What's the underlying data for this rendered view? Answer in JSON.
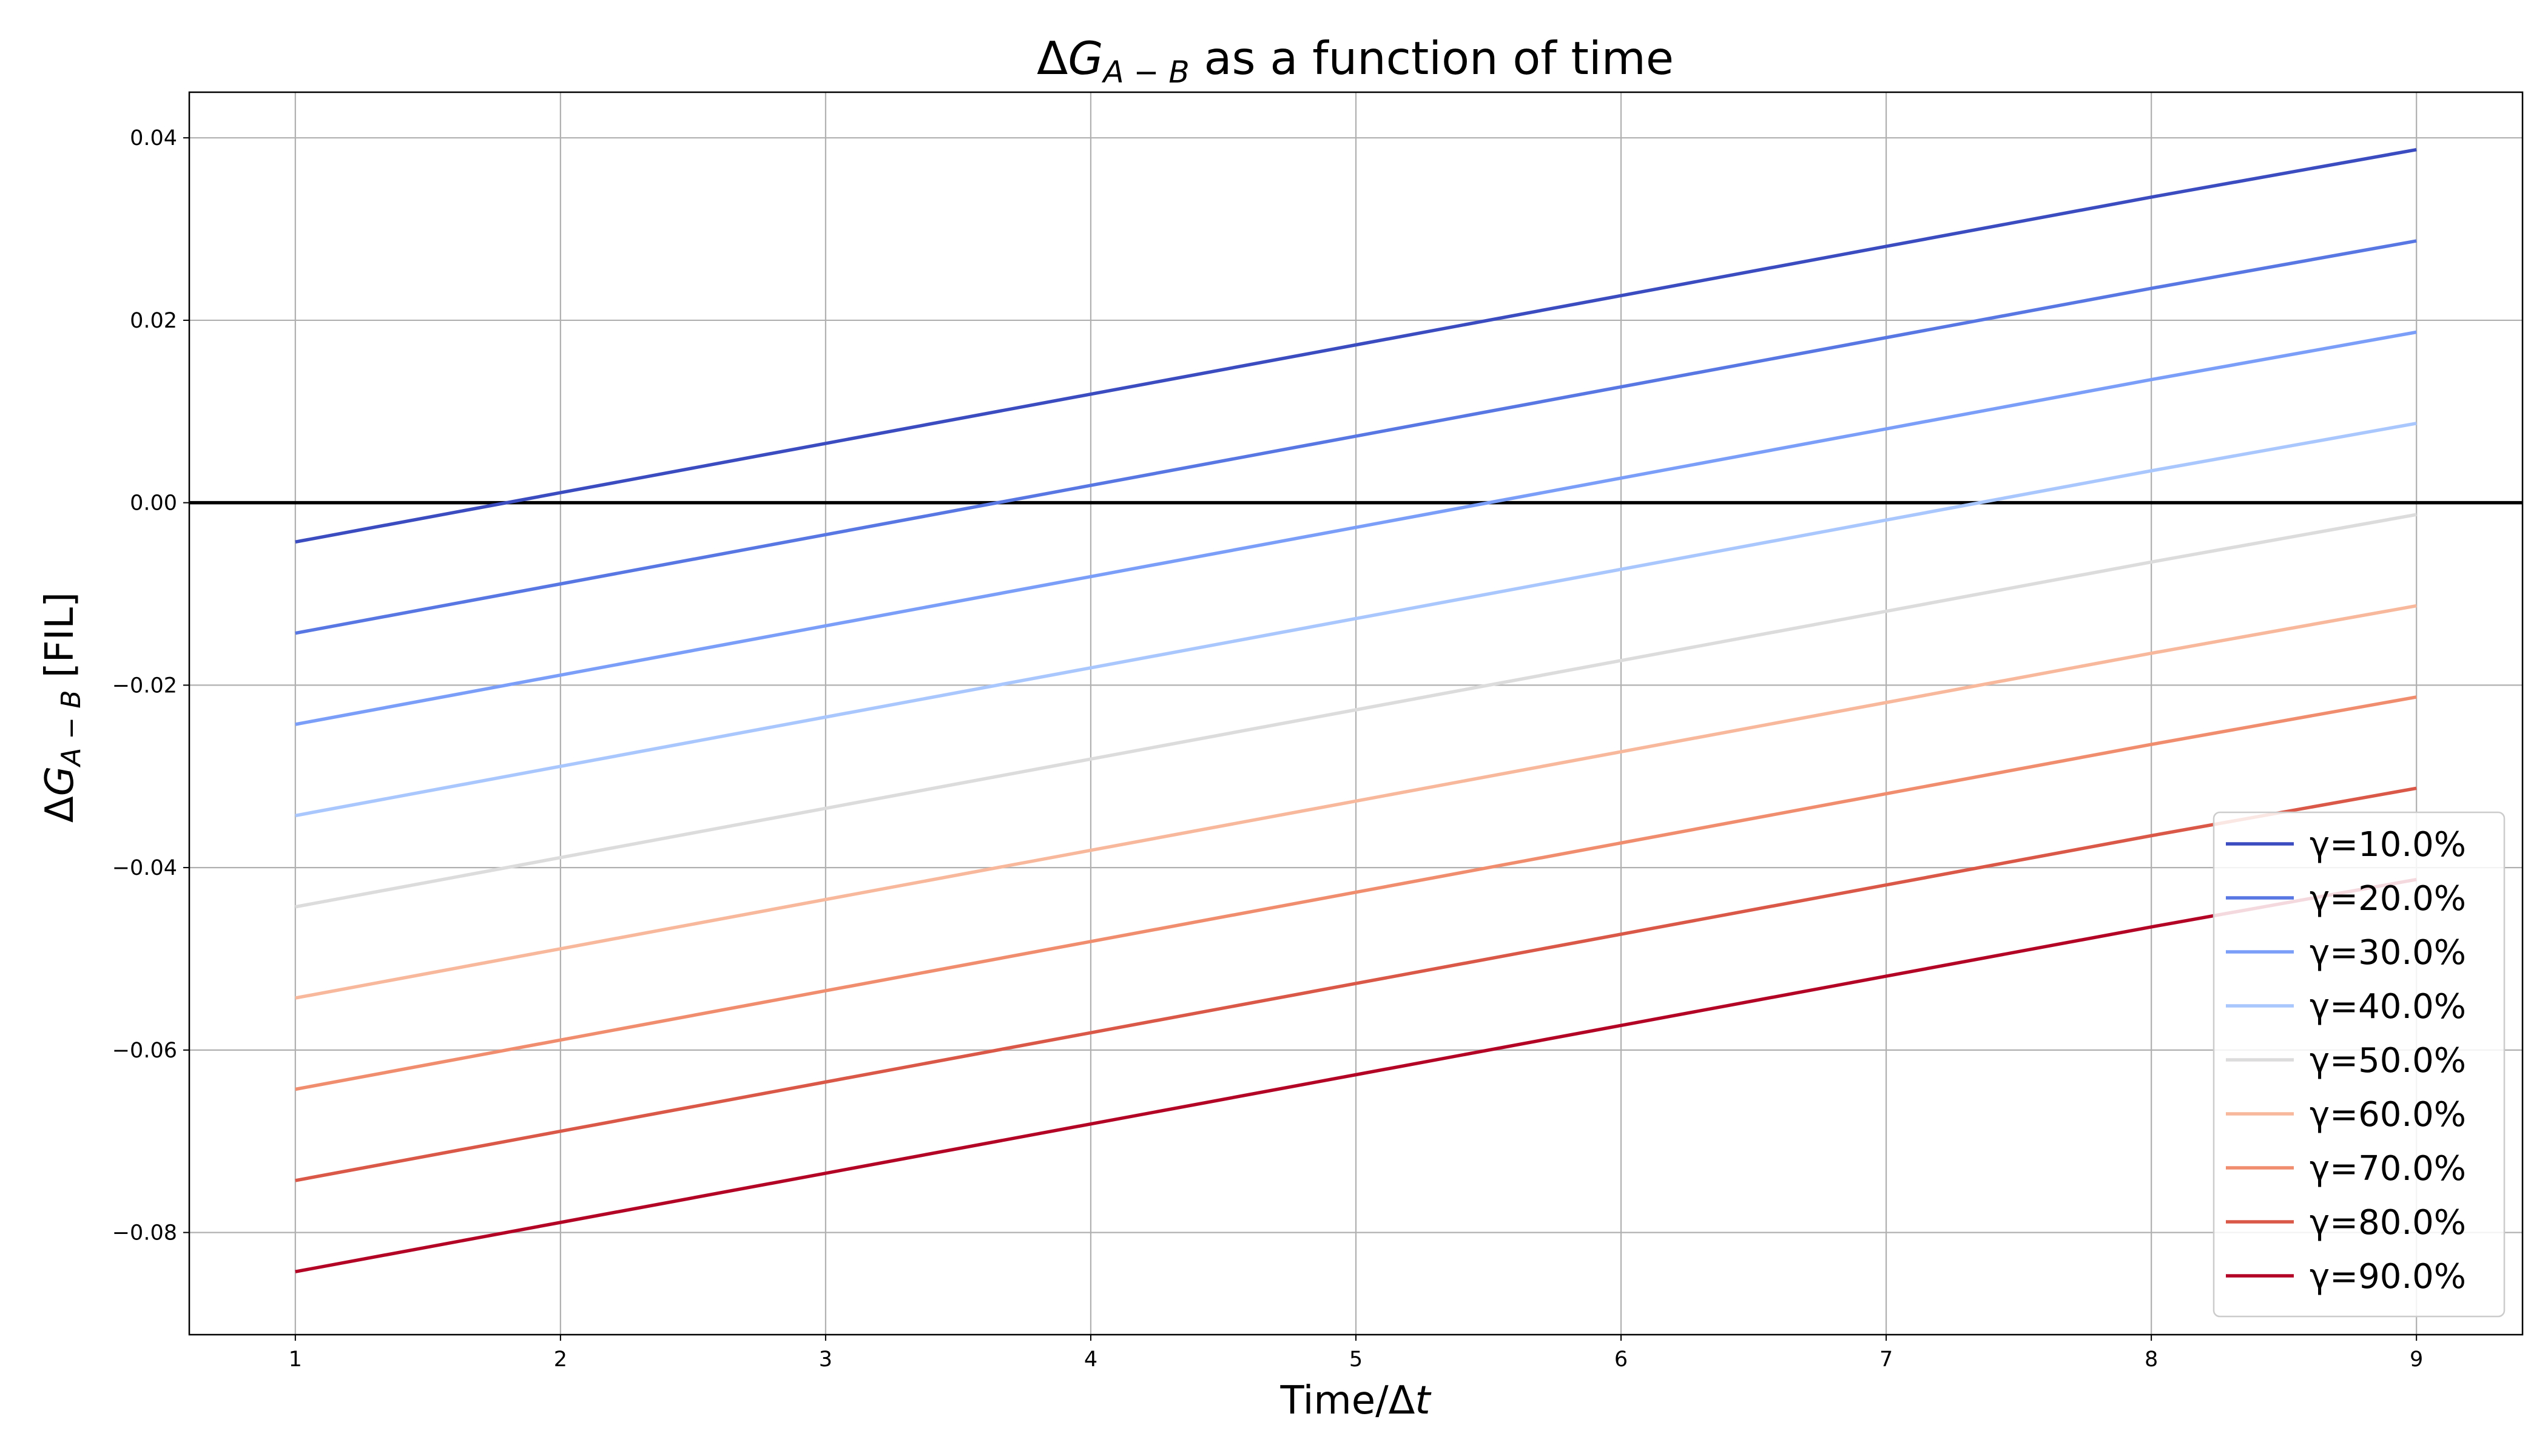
{
  "chart_data": {
    "type": "line",
    "title": {
      "delta": "Δ",
      "var": "G",
      "sub": "A − B",
      "rest": " as a function of time"
    },
    "xlabel": {
      "main": "Time/Δ",
      "italic": "t"
    },
    "ylabel": {
      "delta": "Δ",
      "var": "G",
      "sub": "A − B",
      "rest": " [FIL]"
    },
    "x": [
      1,
      2,
      3,
      4,
      5,
      6,
      7,
      8,
      9
    ],
    "xlim": [
      0.6,
      9.4
    ],
    "ylim": [
      -0.0912,
      0.045
    ],
    "xticks": [
      1,
      2,
      3,
      4,
      5,
      6,
      7,
      8,
      9
    ],
    "xtick_labels": [
      "1",
      "2",
      "3",
      "4",
      "5",
      "6",
      "7",
      "8",
      "9"
    ],
    "yticks": [
      0.04,
      0.02,
      0.0,
      -0.02,
      -0.04,
      -0.06,
      -0.08
    ],
    "ytick_labels": [
      "0.04",
      "0.02",
      "0.00",
      "−0.02",
      "−0.04",
      "−0.06",
      "−0.08"
    ],
    "grid": true,
    "reference_line": {
      "y": 0.0,
      "color": "#000000"
    },
    "legend_position": "lower-right",
    "series": [
      {
        "name": "γ=10.0%",
        "color": "#3b4cc0",
        "values": [
          -0.0043,
          0.0011,
          0.0065,
          0.0119,
          0.0173,
          0.0227,
          0.0281,
          0.0335,
          0.0387
        ]
      },
      {
        "name": "γ=20.0%",
        "color": "#5977e3",
        "values": [
          -0.0143,
          -0.0089,
          -0.0035,
          0.0019,
          0.0073,
          0.0127,
          0.0181,
          0.0235,
          0.0287
        ]
      },
      {
        "name": "γ=30.0%",
        "color": "#7b9ff9",
        "values": [
          -0.0243,
          -0.0189,
          -0.0135,
          -0.0081,
          -0.0027,
          0.0027,
          0.0081,
          0.0135,
          0.0187
        ]
      },
      {
        "name": "γ=40.0%",
        "color": "#aac7fd",
        "values": [
          -0.0343,
          -0.0289,
          -0.0235,
          -0.0181,
          -0.0127,
          -0.0073,
          -0.0019,
          0.0035,
          0.0087
        ]
      },
      {
        "name": "γ=50.0%",
        "color": "#dddcdc",
        "values": [
          -0.0443,
          -0.0389,
          -0.0335,
          -0.0281,
          -0.0227,
          -0.0173,
          -0.0119,
          -0.0065,
          -0.0013
        ]
      },
      {
        "name": "γ=60.0%",
        "color": "#f7b89c",
        "values": [
          -0.0543,
          -0.0489,
          -0.0435,
          -0.0381,
          -0.0327,
          -0.0273,
          -0.0219,
          -0.0165,
          -0.0113
        ]
      },
      {
        "name": "γ=70.0%",
        "color": "#f18d6f",
        "values": [
          -0.0643,
          -0.0589,
          -0.0535,
          -0.0481,
          -0.0427,
          -0.0373,
          -0.0319,
          -0.0265,
          -0.0213
        ]
      },
      {
        "name": "γ=80.0%",
        "color": "#d95847",
        "values": [
          -0.0743,
          -0.0689,
          -0.0635,
          -0.0581,
          -0.0527,
          -0.0473,
          -0.0419,
          -0.0365,
          -0.0313
        ]
      },
      {
        "name": "γ=90.0%",
        "color": "#b40426",
        "values": [
          -0.0843,
          -0.0789,
          -0.0735,
          -0.0681,
          -0.0627,
          -0.0573,
          -0.0519,
          -0.0465,
          -0.0413
        ]
      }
    ]
  }
}
